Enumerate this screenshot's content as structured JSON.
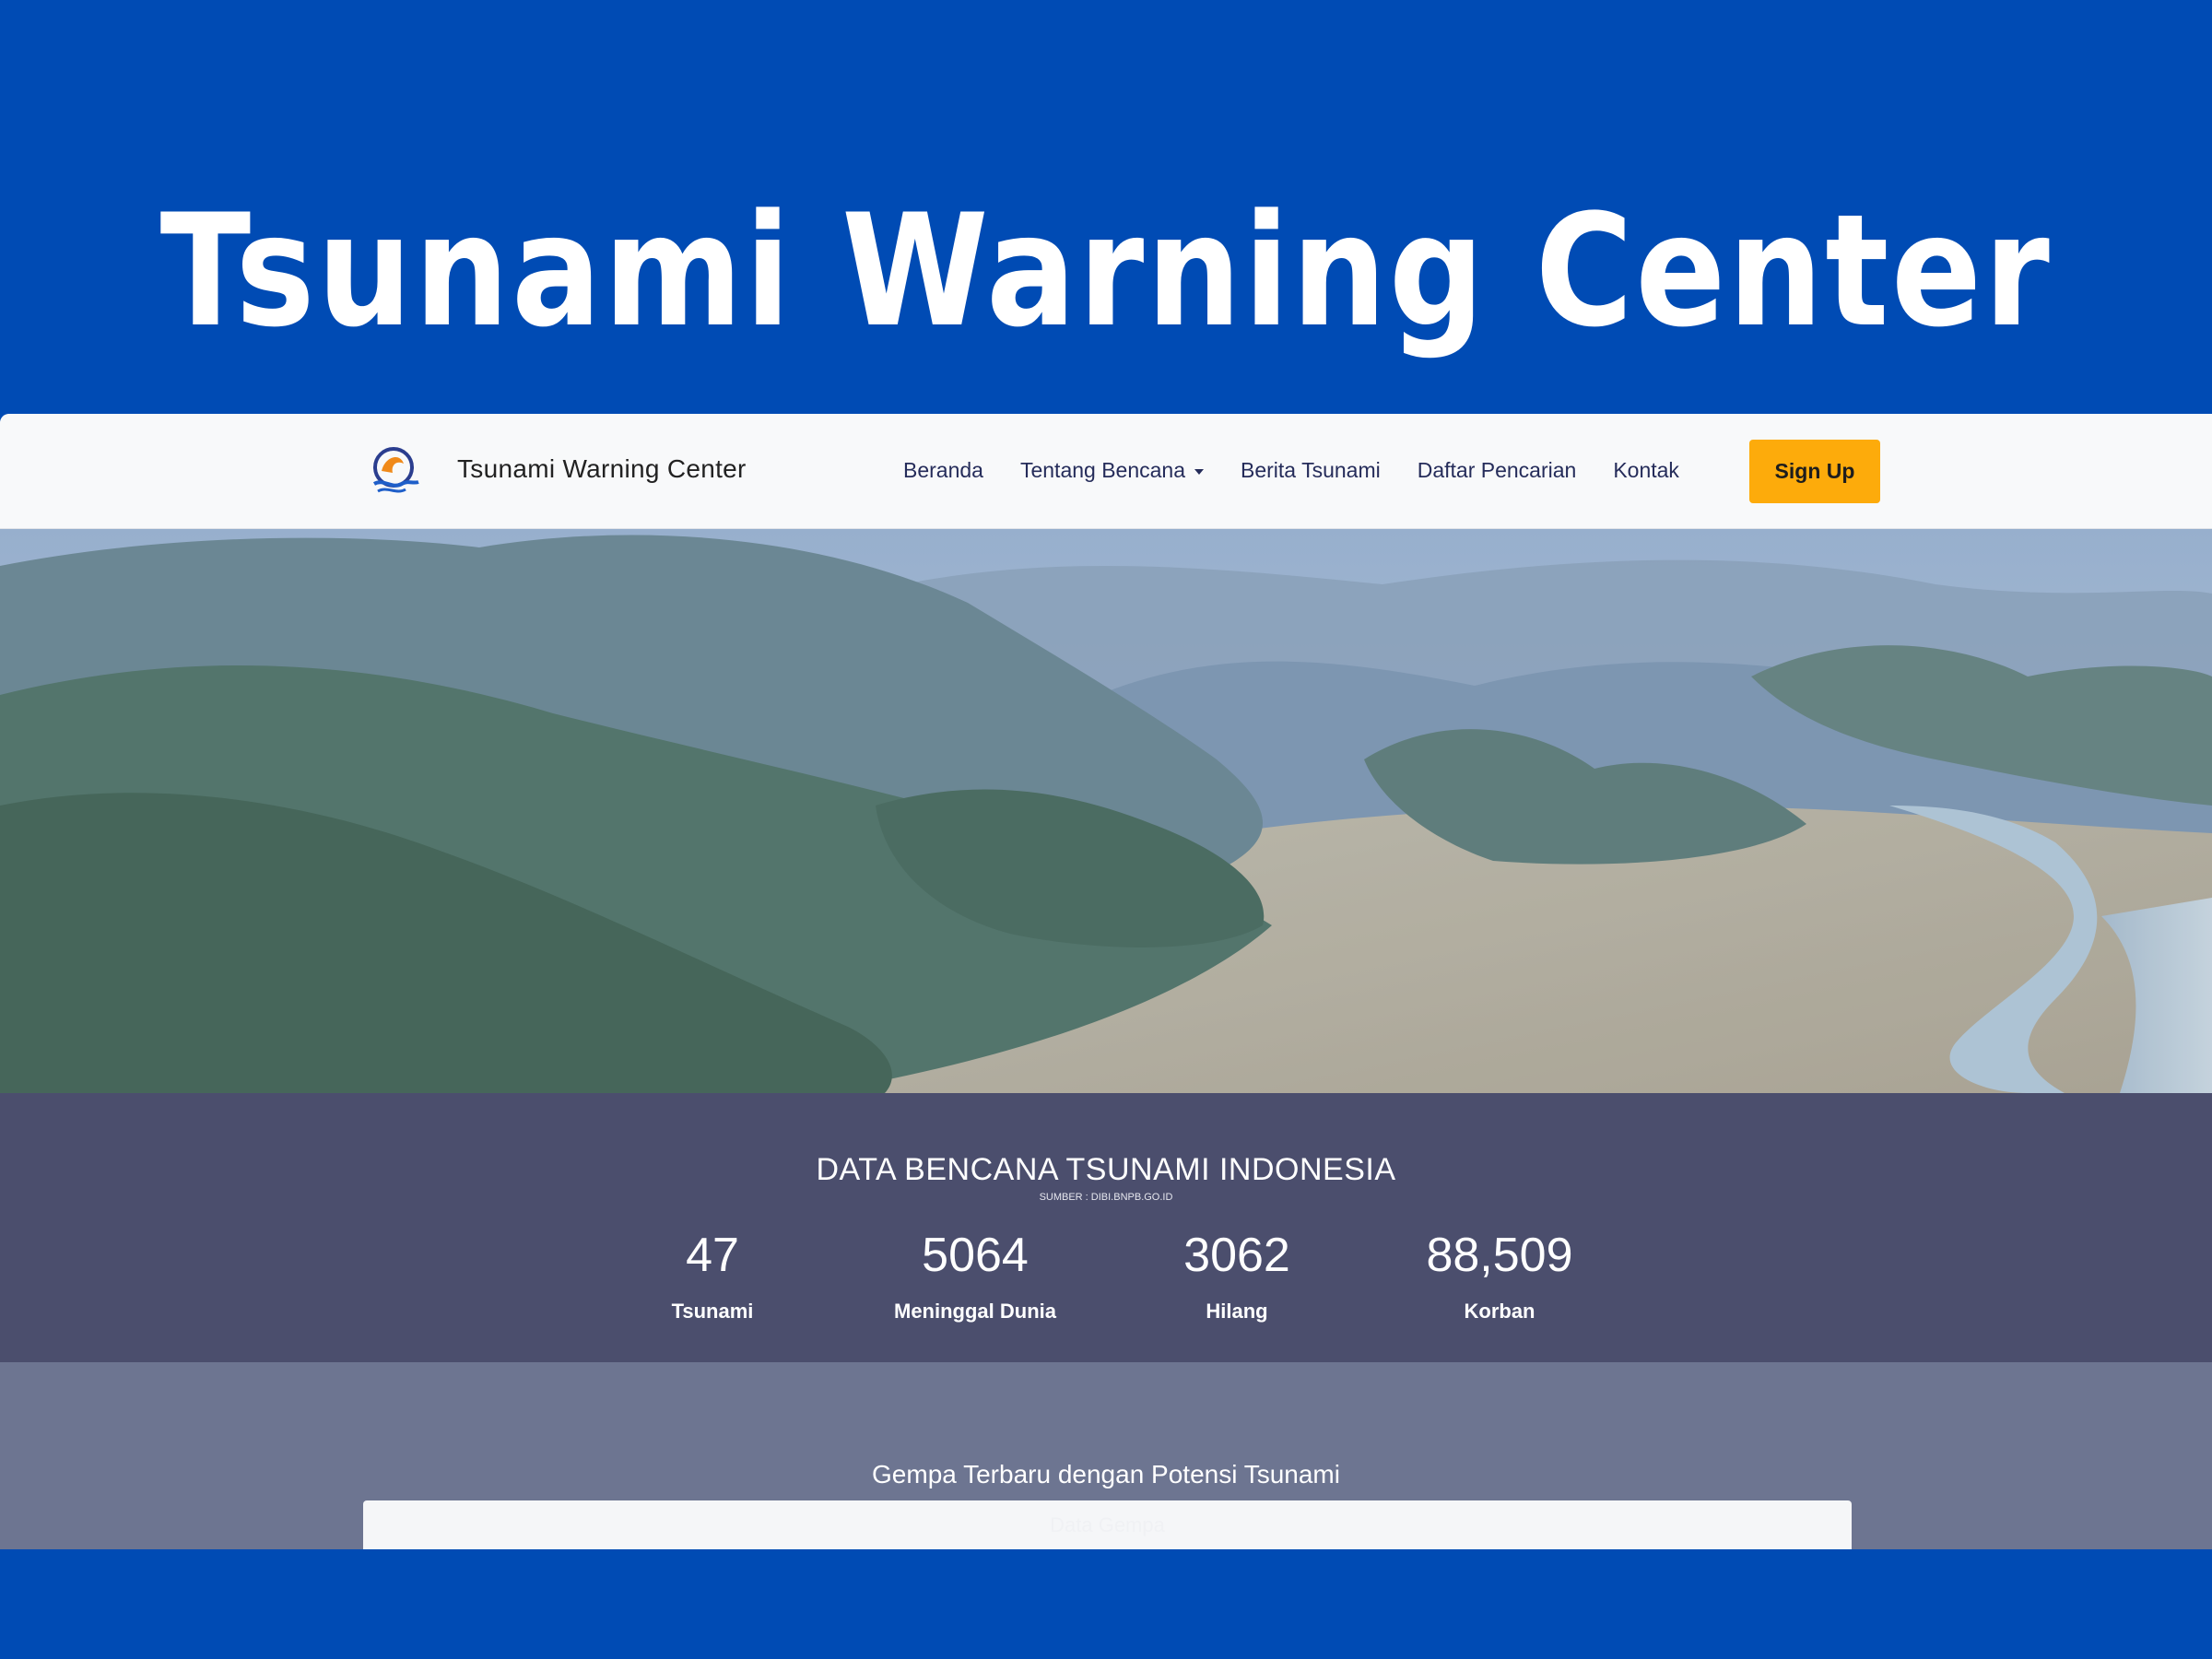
{
  "promo": {
    "title": "Tsunami Warning Center"
  },
  "navbar": {
    "brand": "Tsunami Warning Center",
    "links": [
      "Beranda",
      "Tentang Bencana",
      "Berita Tsunami",
      "Daftar Pencarian",
      "Kontak"
    ],
    "signup_label": "Sign Up"
  },
  "stats": {
    "title": "DATA BENCANA TSUNAMI INDONESIA",
    "source": "SUMBER : DIBI.BNPB.GO.ID",
    "items": [
      {
        "value": "47",
        "label": "Tsunami"
      },
      {
        "value": "5064",
        "label": "Meninggal Dunia"
      },
      {
        "value": "3062",
        "label": "Hilang"
      },
      {
        "value": "88,509",
        "label": "Korban"
      }
    ]
  },
  "latest": {
    "title": "Gempa Terbaru dengan Potensi Tsunami",
    "card_label": "Data Gempa"
  },
  "colors": {
    "page_bg": "#004bb4",
    "navbar_bg": "#f8f9fa",
    "nav_text": "#252c5a",
    "signup_bg": "#fdab0b",
    "stats_bg": "#4b4e6d",
    "lower_bg": "#6d7591"
  }
}
